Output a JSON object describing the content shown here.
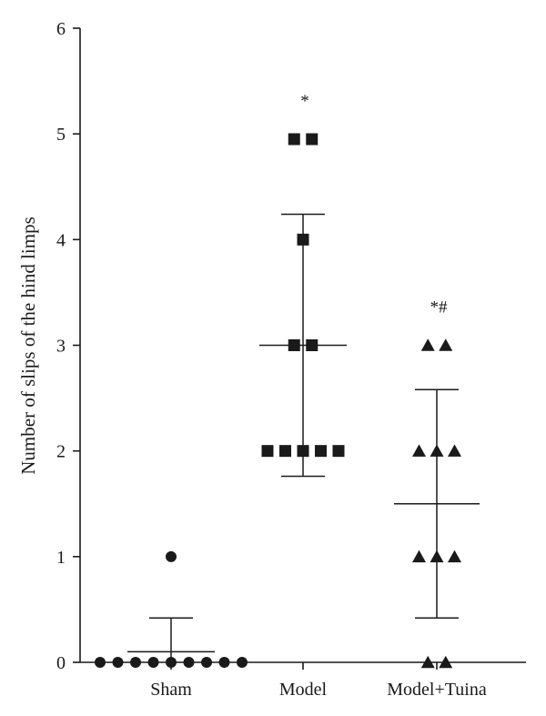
{
  "chart_data": {
    "type": "scatter",
    "ylabel": "Number of slips of the hind limps",
    "xlabel": "",
    "ylim": [
      0,
      6
    ],
    "yticks": [
      0,
      1,
      2,
      3,
      4,
      5,
      6
    ],
    "categories": [
      "Sham",
      "Model",
      "Model+Tuina"
    ],
    "series": [
      {
        "category": "Sham",
        "marker": "circle",
        "values": [
          1,
          0,
          0,
          0,
          0,
          0,
          0,
          0,
          0,
          0
        ],
        "mean": 0.1,
        "sd": 0.32,
        "annotation": ""
      },
      {
        "category": "Model",
        "marker": "square",
        "values": [
          4.95,
          4.95,
          4,
          3,
          3,
          2,
          2,
          2,
          2,
          2
        ],
        "mean": 3.0,
        "sd": 1.24,
        "annotation": "*"
      },
      {
        "category": "Model+Tuina",
        "marker": "triangle",
        "values": [
          3,
          3,
          2,
          2,
          2,
          1,
          1,
          1,
          0,
          0
        ],
        "mean": 1.5,
        "sd": 1.08,
        "annotation": "*#"
      }
    ],
    "grid": false,
    "legend": "none"
  }
}
